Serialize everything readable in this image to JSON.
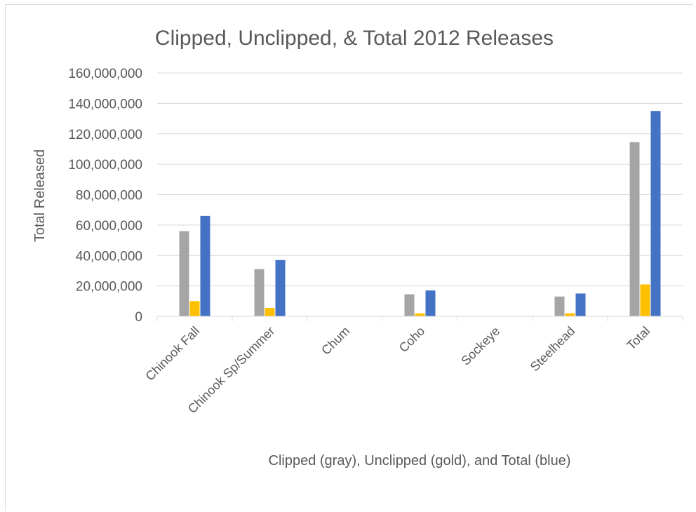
{
  "chart_data": {
    "type": "bar",
    "title": "Clipped, Unclipped, & Total 2012 Releases",
    "xlabel": "Clipped (gray), Unclipped (gold), and Total (blue)",
    "ylabel": "Total Released",
    "ylim": [
      0,
      160000000
    ],
    "yticks": [
      0,
      20000000,
      40000000,
      60000000,
      80000000,
      100000000,
      120000000,
      140000000,
      160000000
    ],
    "ytick_labels": [
      "0",
      "20,000,000",
      "40,000,000",
      "60,000,000",
      "80,000,000",
      "100,000,000",
      "120,000,000",
      "140,000,000",
      "160,000,000"
    ],
    "categories": [
      "Chinook Fall",
      "Chinook Sp/Summer",
      "Chum",
      "Coho",
      "Sockeye",
      "Steelhead",
      "Total"
    ],
    "grid": true,
    "legend": "none",
    "series": [
      {
        "color": "#a5a5a5",
        "values": [
          56000000,
          31000000,
          0,
          14500000,
          0,
          13000000,
          114500000
        ]
      },
      {
        "color": "#ffc000",
        "values": [
          10000000,
          5500000,
          0,
          2000000,
          0,
          2000000,
          21000000
        ]
      },
      {
        "color": "#4472c4",
        "values": [
          66000000,
          37000000,
          0,
          17000000,
          0,
          15000000,
          135000000
        ]
      }
    ]
  }
}
